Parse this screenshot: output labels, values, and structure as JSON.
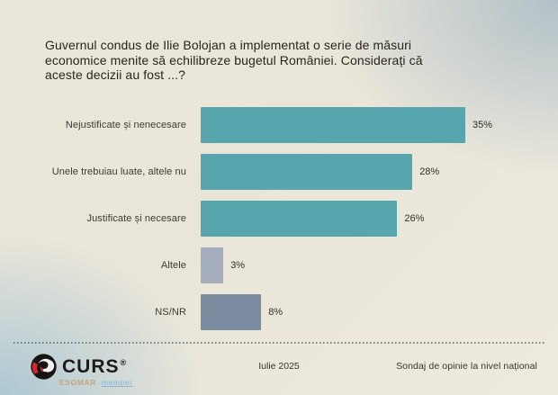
{
  "title": {
    "lines": [
      "Guvernul condus de Ilie Bolojan a implementat o serie de măsuri",
      "economice menite să echilibreze bugetul României. Considerați că",
      "aceste decizii au fost ...?"
    ],
    "full_text": "Guvernul condus de Ilie Bolojan a implementat o serie de măsuri economice menite să echilibreze bugetul României. Considerați că aceste decizii au fost ...?"
  },
  "chart_data": {
    "type": "bar",
    "orientation": "horizontal",
    "categories": [
      "Nejustificate și nenecesare",
      "Unele trebuiau luate, altele nu",
      "Justificate și necesare",
      "Altele",
      "NS/NR"
    ],
    "values": [
      35,
      28,
      26,
      3,
      8
    ],
    "value_labels": [
      "35%",
      "28%",
      "26%",
      "3%",
      "8%"
    ],
    "bar_colors": [
      "#57a5ad",
      "#57a5ad",
      "#57a5ad",
      "#a4adbb",
      "#7b8ba0"
    ],
    "unit": "%",
    "xlim": [
      0,
      42
    ],
    "grid": false,
    "legend_position": "none",
    "data_labels": "outside-end"
  },
  "footer": {
    "logo": {
      "brand": "CURS",
      "registered_mark": "®",
      "membership_org": "ESOMAR",
      "membership_role": "member"
    },
    "date": "Iulie 2025",
    "note": "Sondaj de opinie la nivel național"
  },
  "colors": {
    "bar_teal": "#57a5ad",
    "bar_light_gray_blue": "#a4adbb",
    "bar_gray_blue": "#7b8ba0",
    "logo_red": "#d1272e",
    "logo_black": "#1c1b19",
    "background_cream": "#eae6da",
    "background_blue": "#bfccd3"
  }
}
